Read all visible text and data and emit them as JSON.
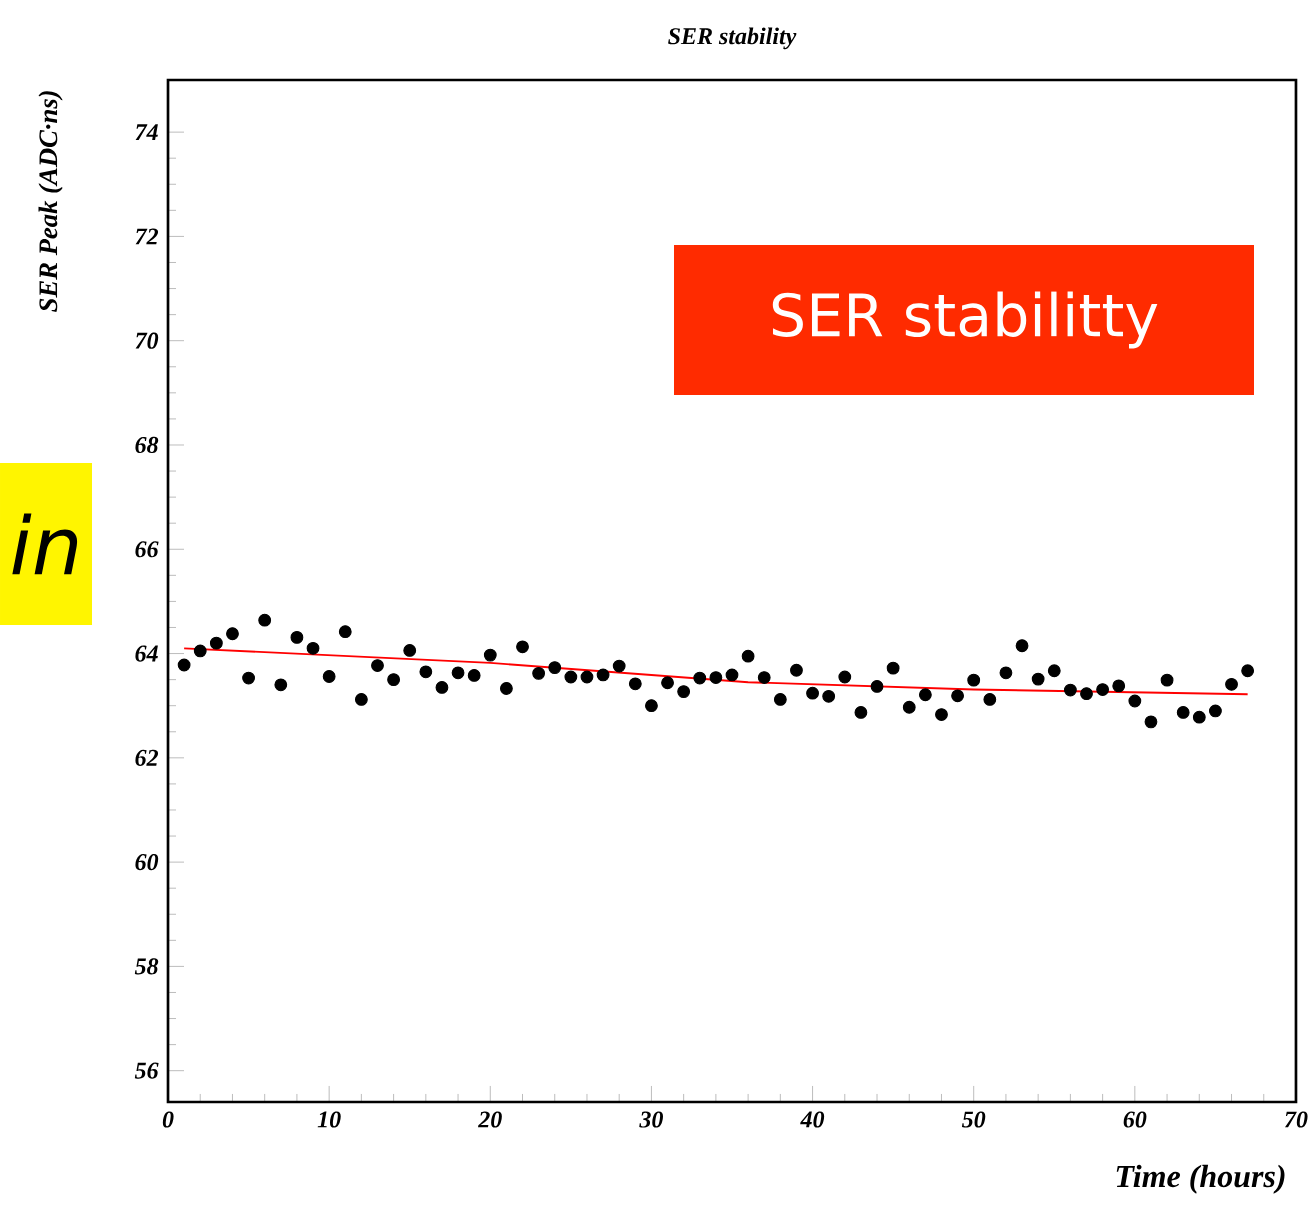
{
  "chart_data": {
    "type": "scatter",
    "title": "SER stability",
    "xlabel": "Time (hours)",
    "ylabel": "SER Peak (ADC·ns)",
    "xlim": [
      0,
      70
    ],
    "ylim": [
      55.4,
      75
    ],
    "xticks": [
      0,
      10,
      20,
      30,
      40,
      50,
      60,
      70
    ],
    "yticks": [
      56,
      58,
      60,
      62,
      64,
      66,
      68,
      70,
      72,
      74
    ],
    "grid": false,
    "series": [
      {
        "marker": "circle",
        "color": "#000000",
        "x": [
          1,
          2,
          3,
          4,
          5,
          6,
          7,
          8,
          9,
          10,
          11,
          12,
          13,
          14,
          15,
          16,
          17,
          18,
          19,
          20,
          21,
          22,
          23,
          24,
          25,
          26,
          27,
          28,
          29,
          30,
          31,
          32,
          33,
          34,
          35,
          36,
          37,
          38,
          39,
          40,
          41,
          42,
          43,
          44,
          45,
          46,
          47,
          48,
          49,
          50,
          51,
          52,
          53,
          54,
          55,
          56,
          57,
          58,
          59,
          60,
          61,
          62,
          63,
          64,
          65,
          66,
          67
        ],
        "values": [
          63.78,
          64.05,
          64.2,
          64.38,
          63.53,
          64.64,
          63.4,
          64.31,
          64.1,
          63.56,
          64.42,
          63.12,
          63.77,
          63.5,
          64.06,
          63.65,
          63.35,
          63.63,
          63.58,
          63.97,
          63.33,
          64.13,
          63.62,
          63.73,
          63.55,
          63.55,
          63.59,
          63.76,
          63.42,
          63.0,
          63.44,
          63.27,
          63.53,
          63.54,
          63.59,
          63.95,
          63.54,
          63.12,
          63.68,
          63.24,
          63.18,
          63.55,
          62.87,
          63.37,
          63.72,
          62.97,
          63.21,
          62.83,
          63.19,
          63.49,
          63.12,
          63.63,
          64.15,
          63.51,
          63.67,
          63.3,
          63.23,
          63.31,
          63.38,
          63.09,
          62.69,
          63.49,
          62.87,
          62.78,
          62.9,
          63.41,
          63.67
        ]
      },
      {
        "type": "line",
        "color": "#ff0000",
        "marker": "none",
        "x": [
          1,
          20,
          36,
          50,
          67
        ],
        "values": [
          64.1,
          63.82,
          63.45,
          63.31,
          63.22
        ]
      }
    ],
    "annotations": [
      "SER stabilitty",
      "in"
    ]
  }
}
